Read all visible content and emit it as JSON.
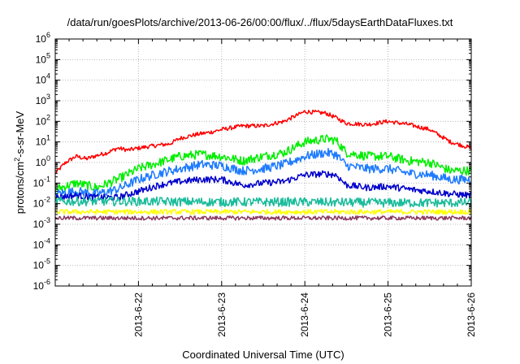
{
  "chart_data": {
    "type": "line",
    "title": "/data/run/goesPlots/archive/2013-06-26/00:00/flux/../flux/5daysEarthDataFluxes.txt",
    "xlabel": "Coordinated Universal Time (UTC)",
    "ylabel": {
      "main": "protons/cm",
      "sup": "2",
      "rest": "-s-sr-MeV"
    },
    "yscale": "log",
    "ylim": [
      1e-06,
      1000000.0
    ],
    "xlim": [
      "2013-06-21T00:00",
      "2013-06-26T00:00"
    ],
    "grid": true,
    "y_tick_labels": [
      {
        "base": "10",
        "exp": "-6"
      },
      {
        "base": "10",
        "exp": "-5"
      },
      {
        "base": "10",
        "exp": "-4"
      },
      {
        "base": "10",
        "exp": "-3"
      },
      {
        "base": "10",
        "exp": "-2"
      },
      {
        "base": "10",
        "exp": "-1"
      },
      {
        "base": "10",
        "exp": "0"
      },
      {
        "base": "10",
        "exp": "1"
      },
      {
        "base": "10",
        "exp": "2"
      },
      {
        "base": "10",
        "exp": "3"
      },
      {
        "base": "10",
        "exp": "4"
      },
      {
        "base": "10",
        "exp": "5"
      },
      {
        "base": "10",
        "exp": "6"
      }
    ],
    "x_ticks": [
      "2013-6-22",
      "2013-6-23",
      "2013-6-24",
      "2013-6-25",
      "2013-6-26"
    ],
    "series": [
      {
        "color": "#ff0000",
        "x": [
          "2013-06-21T00:00",
          "2013-06-21T03:00",
          "2013-06-21T06:00",
          "2013-06-21T09:00",
          "2013-06-21T12:00",
          "2013-06-21T15:00",
          "2013-06-21T18:00",
          "2013-06-21T21:00",
          "2013-06-22T00:00",
          "2013-06-22T03:00",
          "2013-06-22T06:00",
          "2013-06-22T09:00",
          "2013-06-22T12:00",
          "2013-06-22T15:00",
          "2013-06-22T18:00",
          "2013-06-22T21:00",
          "2013-06-23T00:00",
          "2013-06-23T06:00",
          "2013-06-23T12:00",
          "2013-06-23T18:00",
          "2013-06-24T00:00",
          "2013-06-24T06:00",
          "2013-06-24T09:00",
          "2013-06-24T12:00",
          "2013-06-24T18:00",
          "2013-06-25T00:00",
          "2013-06-25T06:00",
          "2013-06-25T12:00",
          "2013-06-25T18:00",
          "2013-06-26T00:00"
        ],
        "values": [
          0.3,
          1.0,
          2.0,
          1.5,
          2.2,
          3.0,
          5.0,
          4.0,
          5.0,
          6.0,
          7.0,
          8.0,
          15,
          20,
          25,
          30,
          40,
          60,
          60,
          100,
          300,
          250,
          150,
          80,
          70,
          100,
          70,
          40,
          10,
          5
        ]
      },
      {
        "color": "#00ee00",
        "x": [
          "2013-06-21T00:00",
          "2013-06-21T06:00",
          "2013-06-21T12:00",
          "2013-06-21T18:00",
          "2013-06-22T00:00",
          "2013-06-22T06:00",
          "2013-06-22T12:00",
          "2013-06-22T18:00",
          "2013-06-23T00:00",
          "2013-06-23T06:00",
          "2013-06-23T12:00",
          "2013-06-23T18:00",
          "2013-06-24T00:00",
          "2013-06-24T06:00",
          "2013-06-24T09:00",
          "2013-06-24T12:00",
          "2013-06-24T18:00",
          "2013-06-25T00:00",
          "2013-06-25T06:00",
          "2013-06-25T12:00",
          "2013-06-25T18:00",
          "2013-06-26T00:00"
        ],
        "values": [
          0.05,
          0.1,
          0.06,
          0.15,
          0.5,
          1.0,
          2.0,
          2.5,
          2.0,
          1.2,
          2.0,
          3.0,
          10,
          14,
          12,
          3.0,
          2.0,
          2.0,
          1.2,
          1.0,
          0.4,
          0.4
        ]
      },
      {
        "color": "#1e7bff",
        "x": [
          "2013-06-21T00:00",
          "2013-06-21T06:00",
          "2013-06-21T12:00",
          "2013-06-21T18:00",
          "2013-06-22T00:00",
          "2013-06-22T06:00",
          "2013-06-22T12:00",
          "2013-06-22T18:00",
          "2013-06-23T00:00",
          "2013-06-23T06:00",
          "2013-06-23T12:00",
          "2013-06-23T18:00",
          "2013-06-24T00:00",
          "2013-06-24T06:00",
          "2013-06-24T09:00",
          "2013-06-24T12:00",
          "2013-06-24T18:00",
          "2013-06-25T00:00",
          "2013-06-25T06:00",
          "2013-06-25T12:00",
          "2013-06-25T18:00",
          "2013-06-26T00:00"
        ],
        "values": [
          0.03,
          0.04,
          0.03,
          0.05,
          0.15,
          0.3,
          0.5,
          0.8,
          0.7,
          0.4,
          0.5,
          0.8,
          2.0,
          3.0,
          2.5,
          0.7,
          0.5,
          0.5,
          0.3,
          0.25,
          0.15,
          0.15
        ]
      },
      {
        "color": "#0000cc",
        "x": [
          "2013-06-21T00:00",
          "2013-06-21T06:00",
          "2013-06-21T12:00",
          "2013-06-21T18:00",
          "2013-06-22T00:00",
          "2013-06-22T06:00",
          "2013-06-22T12:00",
          "2013-06-22T18:00",
          "2013-06-23T00:00",
          "2013-06-23T06:00",
          "2013-06-23T12:00",
          "2013-06-23T18:00",
          "2013-06-24T00:00",
          "2013-06-24T06:00",
          "2013-06-24T09:00",
          "2013-06-24T12:00",
          "2013-06-24T18:00",
          "2013-06-25T00:00",
          "2013-06-25T06:00",
          "2013-06-25T12:00",
          "2013-06-25T18:00",
          "2013-06-26T00:00"
        ],
        "values": [
          0.02,
          0.025,
          0.02,
          0.02,
          0.04,
          0.08,
          0.12,
          0.15,
          0.15,
          0.08,
          0.1,
          0.12,
          0.25,
          0.28,
          0.25,
          0.08,
          0.06,
          0.07,
          0.05,
          0.04,
          0.03,
          0.025
        ]
      },
      {
        "color": "#1abc9c",
        "x": [
          "2013-06-21T00:00",
          "2013-06-22T00:00",
          "2013-06-23T00:00",
          "2013-06-24T00:00",
          "2013-06-25T00:00",
          "2013-06-26T00:00"
        ],
        "values": [
          0.013,
          0.013,
          0.012,
          0.012,
          0.011,
          0.011
        ]
      },
      {
        "color": "#ffff00",
        "x": [
          "2013-06-21T00:00",
          "2013-06-22T00:00",
          "2013-06-23T00:00",
          "2013-06-24T00:00",
          "2013-06-25T00:00",
          "2013-06-26T00:00"
        ],
        "values": [
          0.004,
          0.004,
          0.004,
          0.004,
          0.004,
          0.004
        ]
      },
      {
        "color": "#8b3a62",
        "x": [
          "2013-06-21T00:00",
          "2013-06-22T00:00",
          "2013-06-23T00:00",
          "2013-06-24T00:00",
          "2013-06-25T00:00",
          "2013-06-26T00:00"
        ],
        "values": [
          0.002,
          0.002,
          0.002,
          0.002,
          0.002,
          0.002
        ]
      }
    ]
  }
}
